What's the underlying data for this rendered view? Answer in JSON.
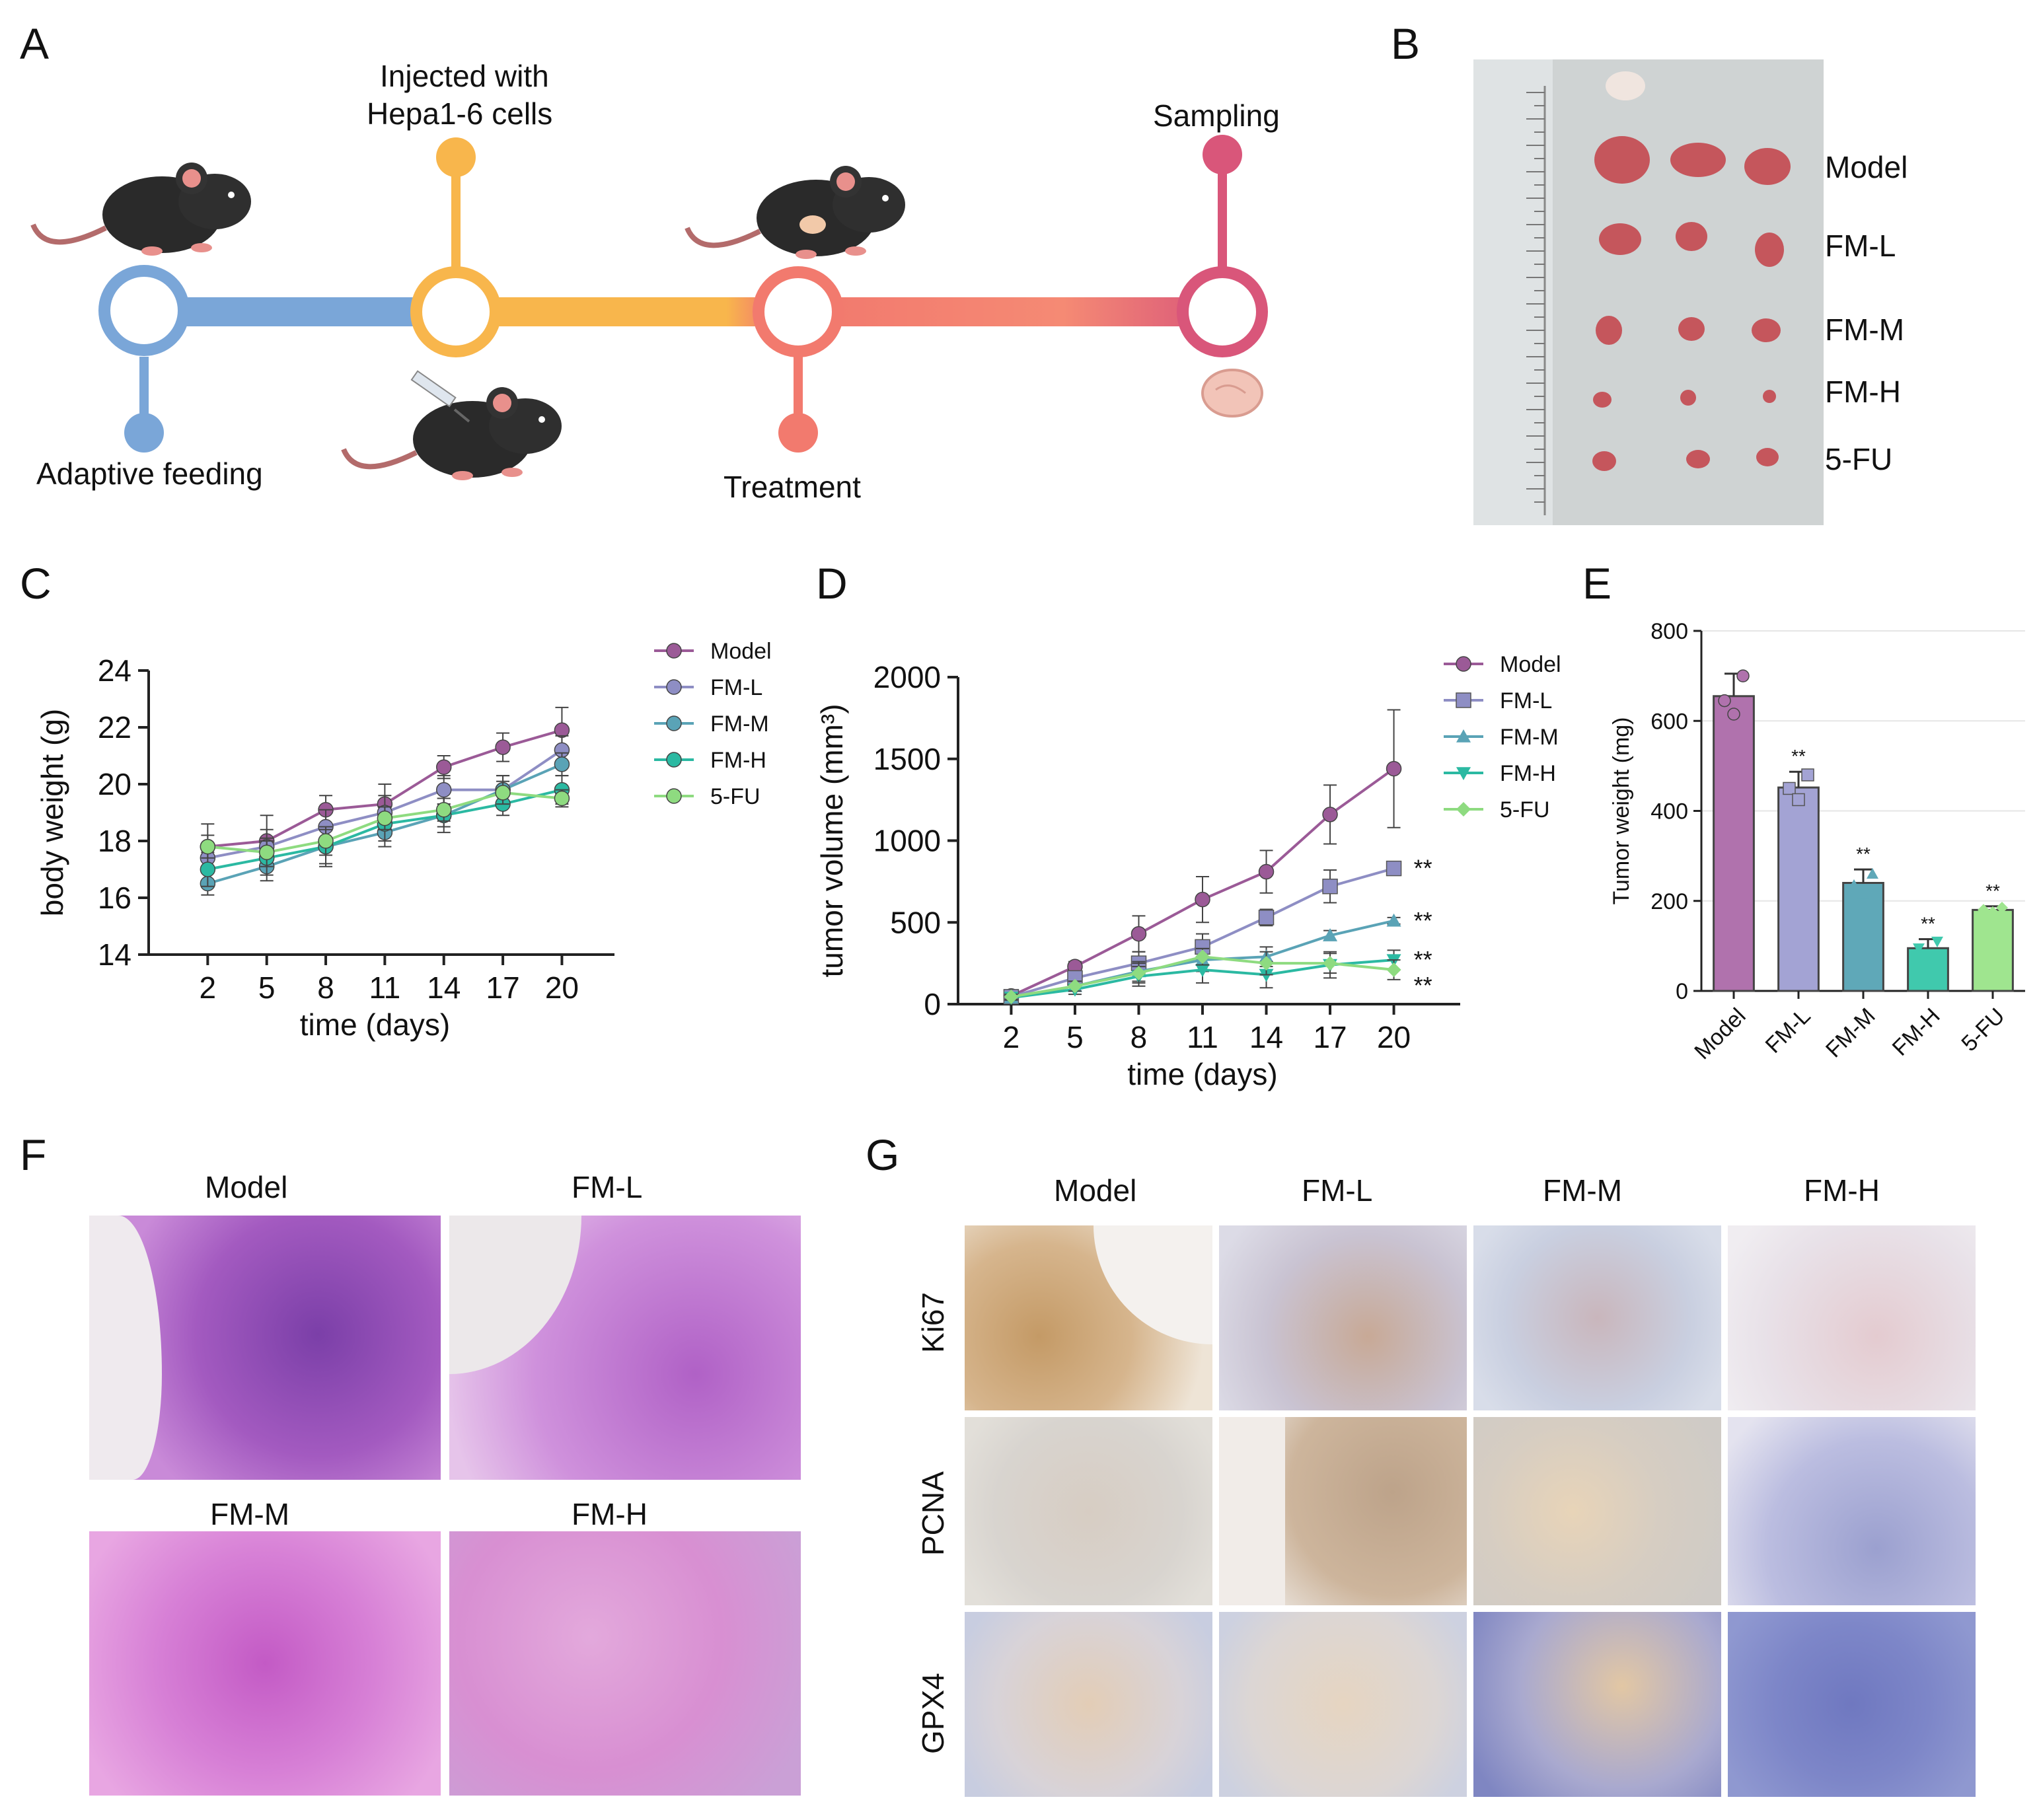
{
  "panels": {
    "A": "A",
    "B": "B",
    "C": "C",
    "D": "D",
    "E": "E",
    "F": "F",
    "G": "G"
  },
  "timeline": {
    "step1": "Adaptive feeding",
    "step2_line1": "Injected with",
    "step2_line2": "Hepa1-6 cells",
    "step3": "Treatment",
    "step4": "Sampling",
    "colors": {
      "blue": "#7aa6d8",
      "orange": "#f8b64c",
      "salmon": "#f27a6e",
      "pink": "#d9567a"
    }
  },
  "photo": {
    "groups": [
      "Model",
      "FM-L",
      "FM-M",
      "FM-H",
      "5-FU"
    ]
  },
  "chart_data": [
    {
      "id": "C",
      "type": "line",
      "title": "",
      "xlabel": "time (days)",
      "ylabel": "body weight (g)",
      "x": [
        2,
        5,
        8,
        11,
        14,
        17,
        20
      ],
      "xticks": [
        "2",
        "5",
        "8",
        "11",
        "14",
        "17",
        "20"
      ],
      "ylim": [
        14,
        24
      ],
      "yticks": [
        14,
        16,
        18,
        20,
        22,
        24
      ],
      "legend_position": "top-right",
      "series": [
        {
          "name": "Model",
          "color": "#9b5a97",
          "marker": "circle",
          "values": [
            17.8,
            18.0,
            19.1,
            19.3,
            20.6,
            21.3,
            21.9
          ],
          "err": [
            0.8,
            0.9,
            0.5,
            0.7,
            0.4,
            0.5,
            0.8
          ]
        },
        {
          "name": "FM-L",
          "color": "#8e8ec4",
          "marker": "circle",
          "values": [
            17.4,
            17.8,
            18.5,
            19.0,
            19.8,
            19.8,
            21.2
          ],
          "err": [
            0.5,
            0.6,
            0.6,
            0.6,
            0.5,
            0.5,
            0.5
          ]
        },
        {
          "name": "FM-M",
          "color": "#5aa3b6",
          "marker": "circle",
          "values": [
            16.5,
            17.1,
            17.8,
            18.3,
            18.9,
            19.8,
            20.7
          ],
          "err": [
            0.4,
            0.5,
            0.6,
            0.5,
            0.6,
            0.5,
            0.4
          ]
        },
        {
          "name": "FM-H",
          "color": "#2bb9a2",
          "marker": "circle",
          "values": [
            17.0,
            17.4,
            17.8,
            18.6,
            18.9,
            19.3,
            19.8
          ],
          "err": [
            0.6,
            0.6,
            0.7,
            0.6,
            0.4,
            0.4,
            0.5
          ]
        },
        {
          "name": "5-FU",
          "color": "#8edb80",
          "marker": "circle",
          "values": [
            17.8,
            17.6,
            18.0,
            18.8,
            19.1,
            19.7,
            19.5
          ],
          "err": [
            0.4,
            0.5,
            0.5,
            0.4,
            0.4,
            0.4,
            0.3
          ]
        }
      ]
    },
    {
      "id": "D",
      "type": "line",
      "title": "",
      "xlabel": "time (days)",
      "ylabel": "tumor volume (mm³)",
      "x": [
        2,
        5,
        8,
        11,
        14,
        17,
        20
      ],
      "xticks": [
        "2",
        "5",
        "8",
        "11",
        "14",
        "17",
        "20"
      ],
      "ylim": [
        0,
        2000
      ],
      "yticks": [
        0,
        500,
        1000,
        1500,
        2000
      ],
      "legend_position": "top-right",
      "annotations": [
        "**",
        "**",
        "**",
        "**"
      ],
      "series": [
        {
          "name": "Model",
          "color": "#9b5a97",
          "marker": "circle",
          "values": [
            50,
            230,
            430,
            640,
            810,
            1160,
            1440
          ],
          "err": [
            20,
            30,
            110,
            140,
            130,
            180,
            360
          ]
        },
        {
          "name": "FM-L",
          "color": "#8e8ec4",
          "marker": "square",
          "values": [
            45,
            160,
            250,
            350,
            530,
            720,
            830
          ],
          "err": [
            15,
            40,
            70,
            80,
            50,
            100,
            30
          ]
        },
        {
          "name": "FM-M",
          "color": "#5aa3b6",
          "marker": "triangle-up",
          "values": [
            40,
            110,
            200,
            270,
            290,
            420,
            510
          ],
          "err": [
            15,
            30,
            60,
            70,
            60,
            30,
            20
          ]
        },
        {
          "name": "FM-H",
          "color": "#2bb9a2",
          "marker": "triangle-down",
          "values": [
            40,
            90,
            170,
            210,
            180,
            240,
            270
          ],
          "err": [
            15,
            30,
            60,
            80,
            80,
            80,
            60
          ]
        },
        {
          "name": "5-FU",
          "color": "#8edb80",
          "marker": "diamond",
          "values": [
            45,
            110,
            190,
            290,
            250,
            250,
            210
          ],
          "err": [
            15,
            30,
            60,
            50,
            70,
            60,
            60
          ]
        }
      ]
    },
    {
      "id": "E",
      "type": "bar",
      "title": "",
      "xlabel": "",
      "ylabel": "Tumor weight (mg)",
      "categories": [
        "Model",
        "FM-L",
        "FM-M",
        "FM-H",
        "5-FU"
      ],
      "values": [
        655,
        452,
        240,
        95,
        180
      ],
      "err": [
        50,
        35,
        30,
        20,
        8
      ],
      "points": [
        [
          645,
          615,
          700
        ],
        [
          450,
          425,
          480
        ],
        [
          235,
          215,
          260
        ],
        [
          95,
          80,
          110
        ],
        [
          180,
          175,
          185
        ]
      ],
      "ylim": [
        0,
        800
      ],
      "yticks": [
        0,
        200,
        400,
        600,
        800
      ],
      "annotations": [
        "",
        "**",
        "**",
        "**",
        "**"
      ],
      "colors": [
        "#b072ad",
        "#a3a3d4",
        "#5fa8b8",
        "#40c9ad",
        "#9fe58f"
      ],
      "edge": "#444444"
    }
  ],
  "he": {
    "labels": [
      "Model",
      "FM-L",
      "FM-M",
      "FM-H"
    ]
  },
  "ihc": {
    "columns": [
      "Model",
      "FM-L",
      "FM-M",
      "FM-H"
    ],
    "rows": [
      "Ki67",
      "PCNA",
      "GPX4"
    ]
  }
}
